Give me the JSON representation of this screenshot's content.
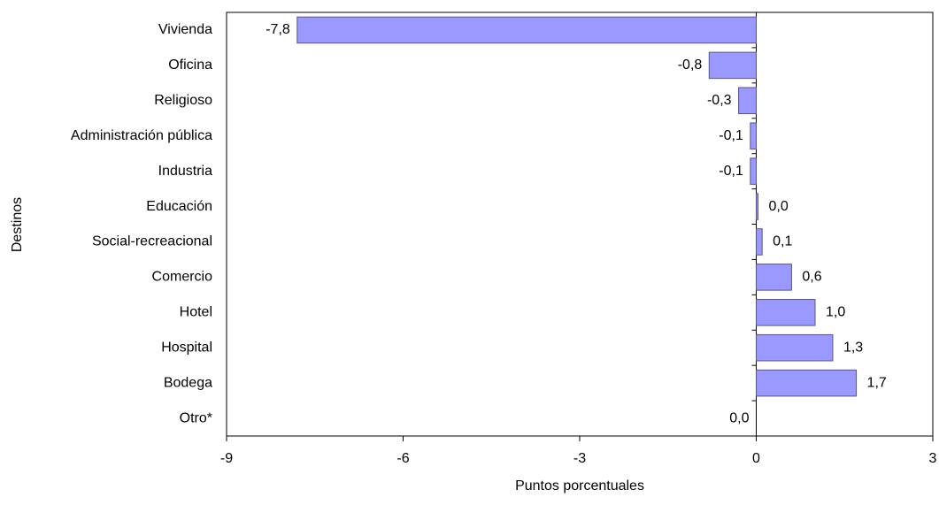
{
  "chart_data": {
    "type": "barh",
    "x_label": "Puntos porcentuales",
    "y_label": "Destinos",
    "categories": [
      "Vivienda",
      "Oficina",
      "Religioso",
      "Administración pública",
      "Industria",
      "Educación",
      "Social-recreacional",
      "Comercio",
      "Hotel",
      "Hospital",
      "Bodega",
      "Otro*"
    ],
    "values": [
      -7.8,
      -0.8,
      -0.3,
      -0.1,
      -0.1,
      0.03,
      0.1,
      0.6,
      1.0,
      1.3,
      1.7,
      0.0
    ],
    "value_labels": [
      "-7,8",
      "-0,8",
      "-0,3",
      "-0,1",
      "-0,1",
      "0,0",
      "0,1",
      "0,6",
      "1,0",
      "1,3",
      "1,7",
      "0,0"
    ],
    "color": "#9999ff",
    "xlim": [
      -9,
      3
    ],
    "xticks": [
      -9,
      -6,
      -3,
      0,
      3
    ]
  }
}
